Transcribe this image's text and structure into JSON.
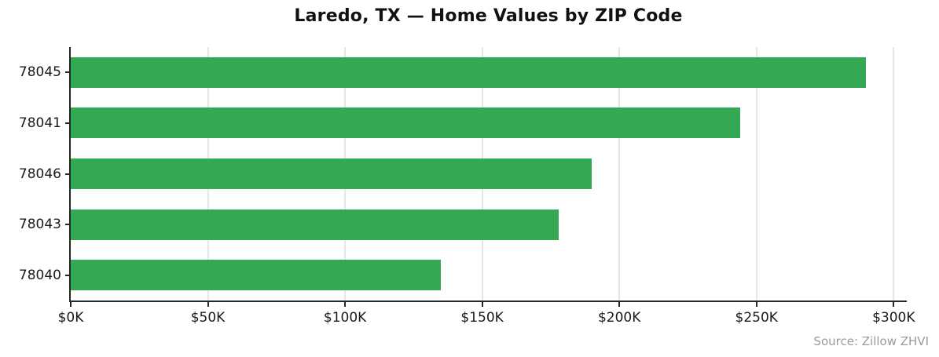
{
  "chart_data": {
    "type": "bar",
    "orientation": "horizontal",
    "title": "Laredo, TX — Home Values by ZIP Code",
    "categories": [
      "78045",
      "78041",
      "78046",
      "78043",
      "78040"
    ],
    "values": [
      290,
      244,
      190,
      178,
      135
    ],
    "value_unit": "thousand USD (ZHVI)",
    "x_ticks": [
      0,
      50,
      100,
      150,
      200,
      250,
      300
    ],
    "x_tick_labels": [
      "$0K",
      "$50K",
      "$100K",
      "$150K",
      "$200K",
      "$250K",
      "$300K"
    ],
    "xlim": [
      0,
      304.5
    ],
    "grid": true,
    "legend": false,
    "source": "Source: Zillow ZHVI"
  },
  "colors": {
    "bar": "#34a853",
    "gridline": "#e6e6e6",
    "spine": "#262626",
    "tick": "#262626",
    "tick_label": "#1a1a1a",
    "title": "#111111",
    "source_text": "#9a9a9a",
    "background": "#ffffff"
  }
}
